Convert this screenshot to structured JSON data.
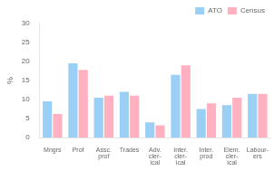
{
  "chart_data": {
    "type": "bar",
    "categories": [
      "Mngrs",
      "Prof",
      "Assc.\nprof",
      "Trades",
      "Adv.\ncler-\nical",
      "Inter.\ncler-\nical",
      "Inter.\nprod",
      "Elem.\ncler-\nical",
      "Labour-\ners"
    ],
    "series": [
      {
        "name": "ATO",
        "values": [
          9.5,
          19.5,
          10.5,
          12.0,
          4.0,
          16.5,
          7.5,
          8.5,
          11.5
        ]
      },
      {
        "name": "Census",
        "values": [
          6.2,
          17.8,
          11.0,
          11.0,
          3.2,
          19.0,
          9.0,
          10.5,
          11.5
        ]
      }
    ],
    "ylabel": "%",
    "ylim": [
      0,
      30
    ],
    "yticks": [
      0,
      5,
      10,
      15,
      20,
      25,
      30
    ],
    "grid": false,
    "legend": "upper right"
  }
}
